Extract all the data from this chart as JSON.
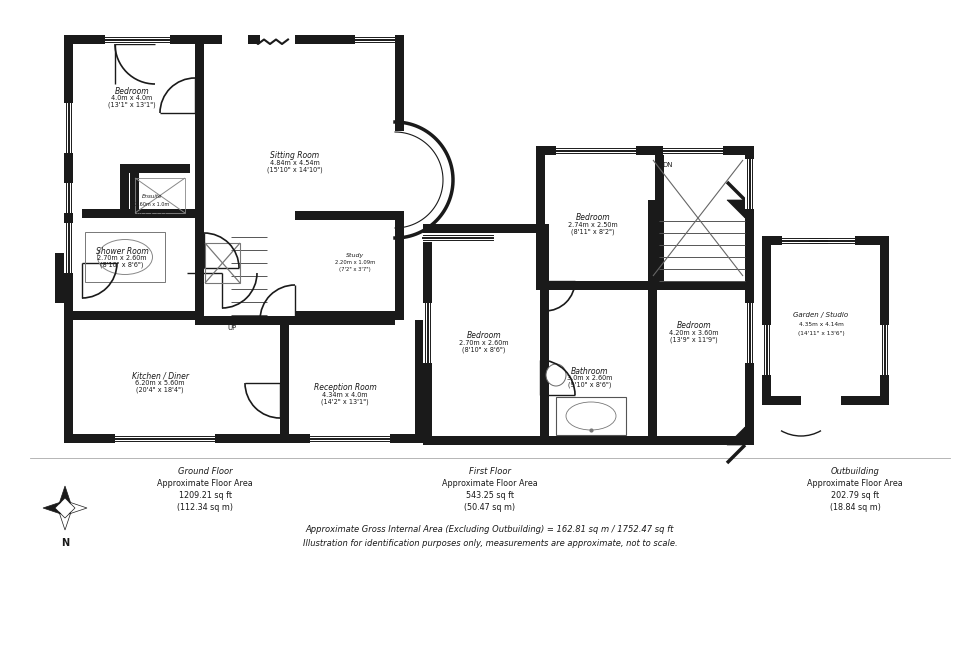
{
  "background_color": "#ffffff",
  "line_color": "#1a1a1a",
  "fig_width": 9.8,
  "fig_height": 6.53,
  "footer_line1": "Approximate Gross Internal Area (Excluding Outbuilding) = 162.81 sq m / 1752.47 sq ft",
  "footer_line2": "Illustration for identification purposes only, measurements are approximate, not to scale.",
  "ground_floor_label": "Ground Floor",
  "ground_floor_area1": "Approximate Floor Area",
  "ground_floor_area2": "1209.21 sq ft",
  "ground_floor_area3": "(112.34 sq m)",
  "first_floor_label": "First Floor",
  "first_floor_area1": "Approximate Floor Area",
  "first_floor_area2": "543.25 sq ft",
  "first_floor_area3": "(50.47 sq m)",
  "outbuilding_label": "Outbuilding",
  "outbuilding_area1": "Approximate Floor Area",
  "outbuilding_area2": "202.79 sq ft",
  "outbuilding_area3": "(18.84 sq m)"
}
